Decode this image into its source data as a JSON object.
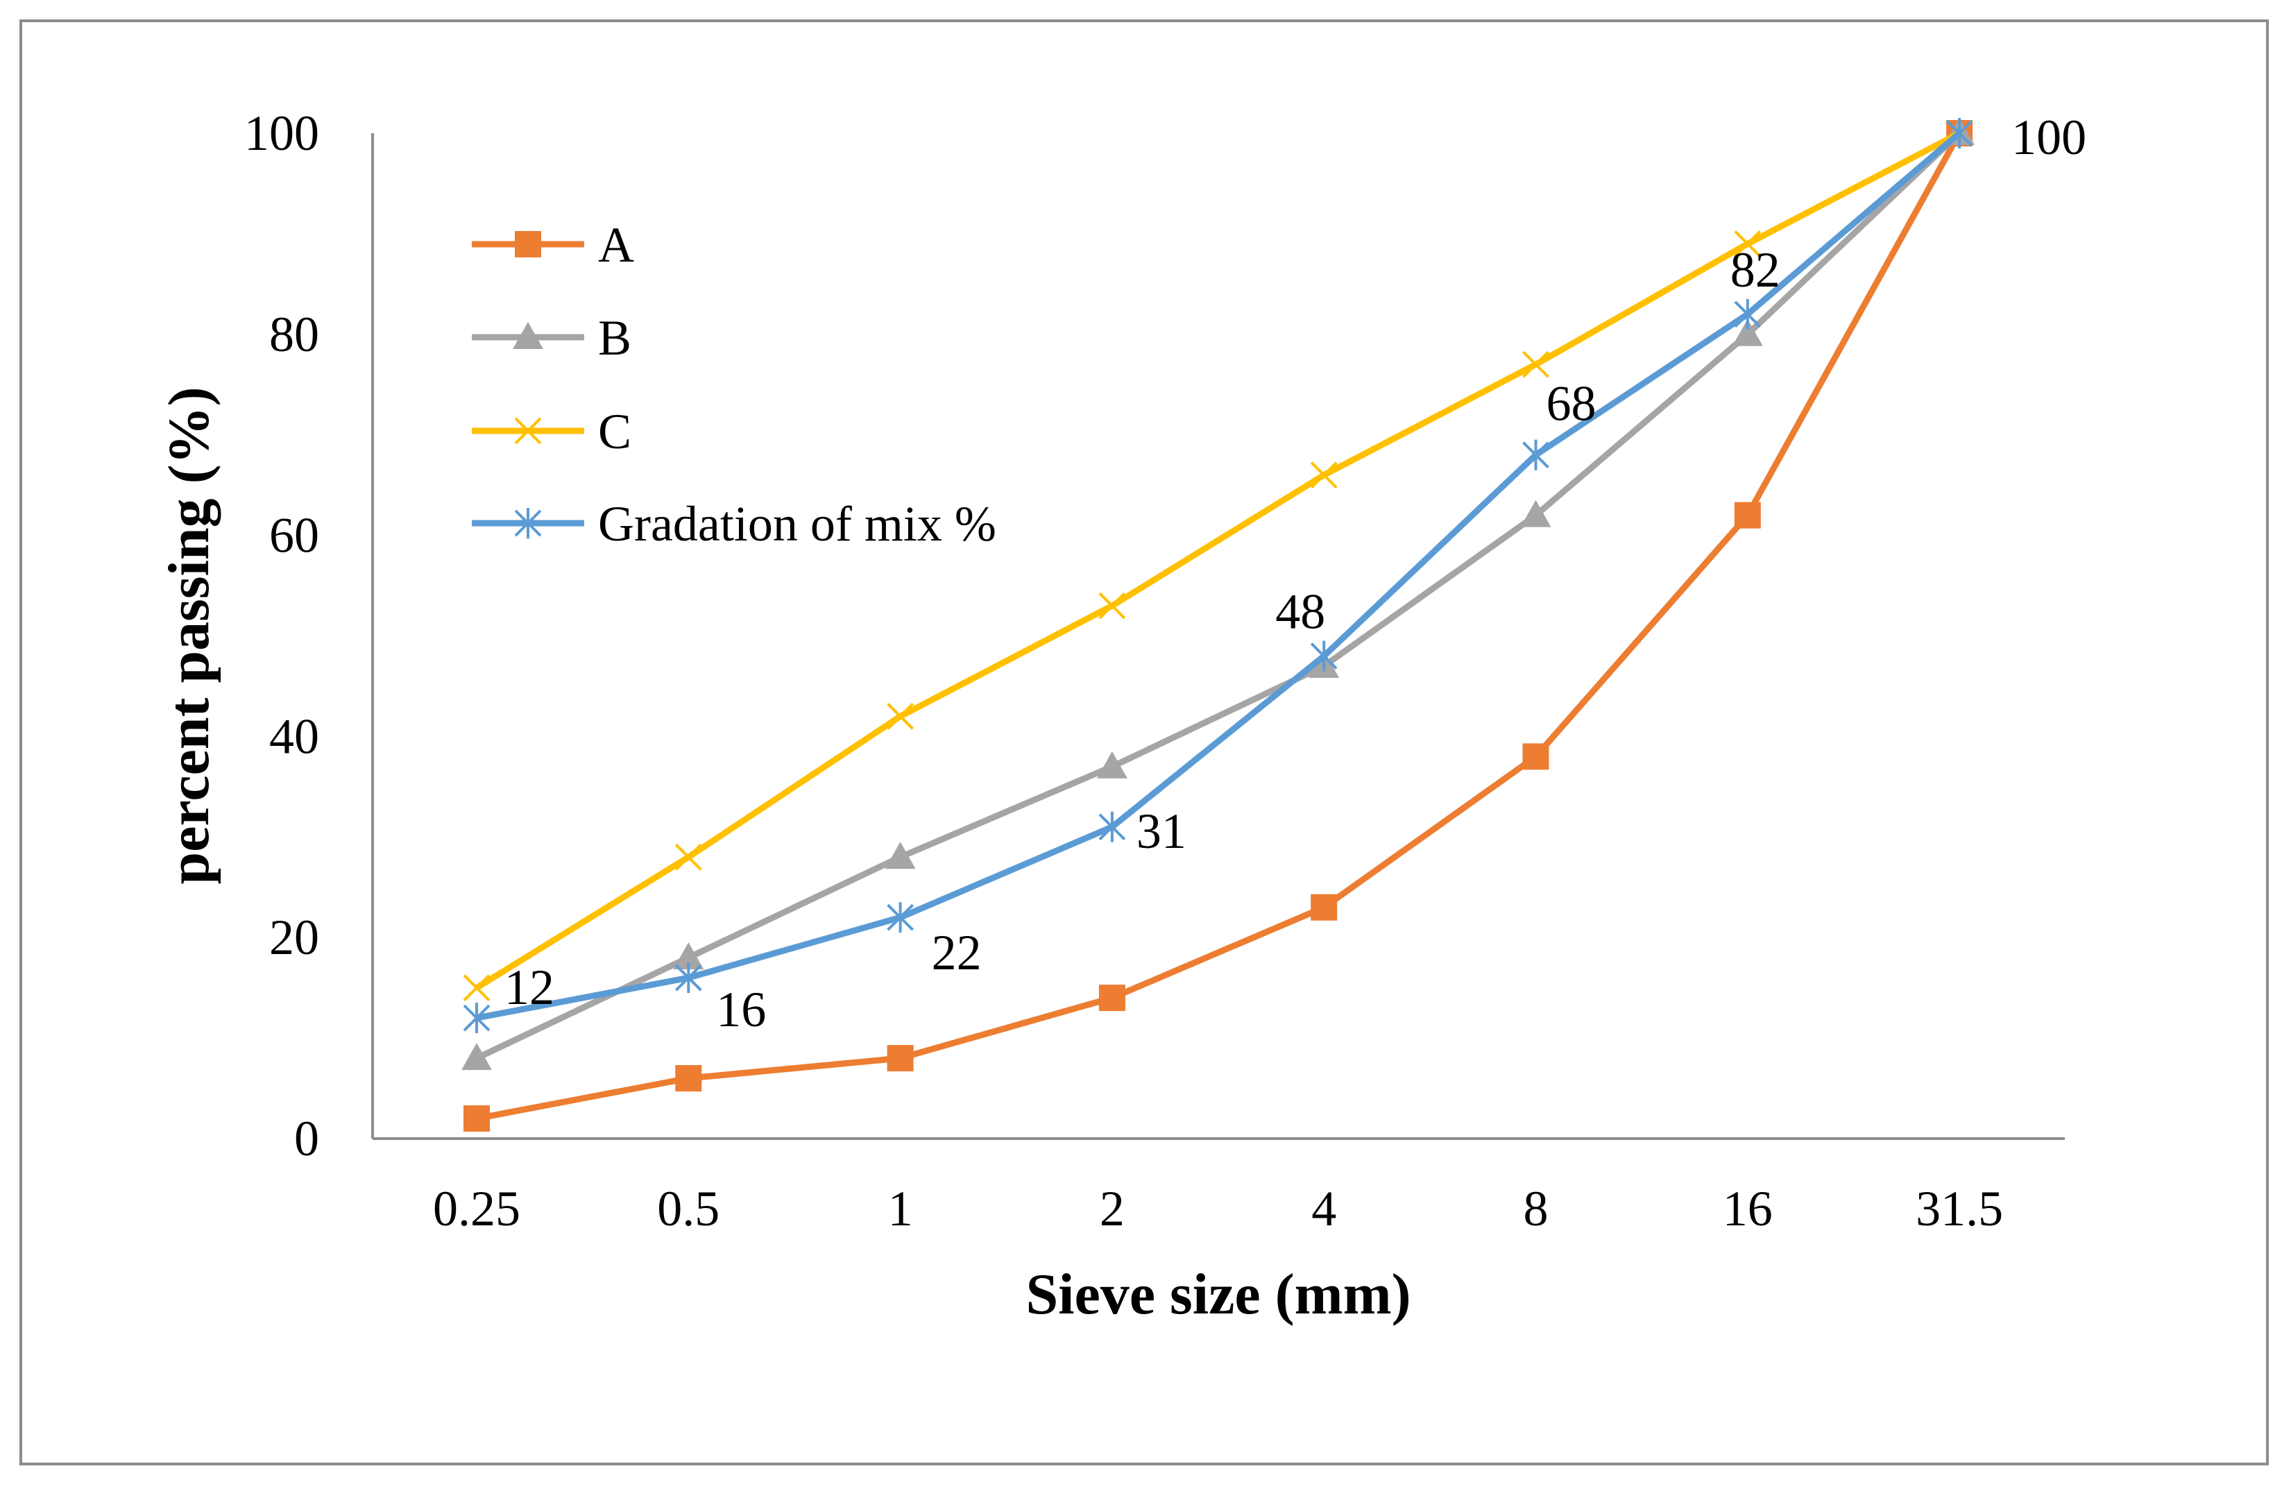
{
  "chart_data": {
    "type": "line",
    "title": "",
    "xlabel": "Sieve size (mm)",
    "ylabel": "percent passing (%)",
    "categories": [
      "0.25",
      "0.5",
      "1",
      "2",
      "4",
      "8",
      "16",
      "31.5"
    ],
    "ylim": [
      0,
      100
    ],
    "yticks": [
      "0",
      "20",
      "40",
      "60",
      "80",
      "100"
    ],
    "grid": false,
    "legend_position": "top-left",
    "series": [
      {
        "name": "A",
        "color": "#ED7D31",
        "marker": "square",
        "values": [
          2,
          6,
          8,
          14,
          23,
          38,
          62,
          100
        ]
      },
      {
        "name": "B",
        "color": "#A5A5A5",
        "marker": "triangle",
        "values": [
          8,
          18,
          28,
          37,
          47,
          62,
          80,
          100
        ]
      },
      {
        "name": "C",
        "color": "#FFC000",
        "marker": "x",
        "values": [
          15,
          28,
          42,
          53,
          66,
          77,
          89,
          100
        ]
      },
      {
        "name": "Gradation of mix %",
        "color": "#5B9BD5",
        "marker": "star",
        "values": [
          12,
          16,
          22,
          31,
          48,
          68,
          82,
          100
        ],
        "data_labels": [
          "12",
          "16",
          "22",
          "31",
          "48",
          "68",
          "82",
          "100"
        ]
      }
    ]
  }
}
